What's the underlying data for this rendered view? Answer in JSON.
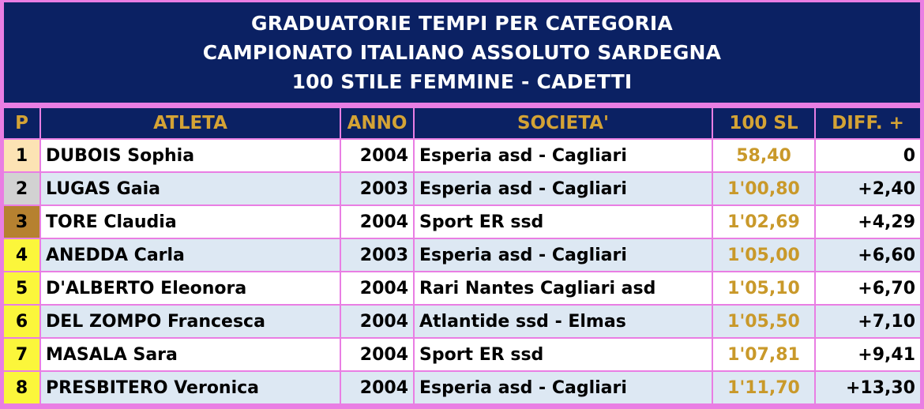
{
  "header": {
    "line1": "GRADUATORIE TEMPI PER CATEGORIA",
    "line2": "CAMPIONATO ITALIANO ASSOLUTO SARDEGNA",
    "line3": "100 STILE FEMMINE - CADETTI"
  },
  "columns": {
    "position": "P",
    "athlete": "ATLETA",
    "year": "ANNO",
    "club": "SOCIETA'",
    "time": "100 SL",
    "diff": "DIFF. +"
  },
  "colors": {
    "header_bg": "#0b2163",
    "header_text": "#ffffff",
    "column_header_text": "#d4a335",
    "time_text": "#c9992a",
    "frame": "#e97ee3",
    "gold": "#fce3b4",
    "silver": "#d2d2d2",
    "bronze": "#b68130",
    "other_position": "#fbf63b"
  },
  "rows": [
    {
      "pos": "1",
      "athlete": "DUBOIS Sophia",
      "year": "2004",
      "club": "Esperia asd - Cagliari",
      "time": "58,40",
      "diff": "0",
      "medal": "gold"
    },
    {
      "pos": "2",
      "athlete": "LUGAS Gaia",
      "year": "2003",
      "club": "Esperia asd - Cagliari",
      "time": "1'00,80",
      "diff": "+2,40",
      "medal": "silver"
    },
    {
      "pos": "3",
      "athlete": "TORE Claudia",
      "year": "2004",
      "club": "Sport ER ssd",
      "time": "1'02,69",
      "diff": "+4,29",
      "medal": "bronze"
    },
    {
      "pos": "4",
      "athlete": "ANEDDA Carla",
      "year": "2003",
      "club": "Esperia asd - Cagliari",
      "time": "1'05,00",
      "diff": "+6,60",
      "medal": "yellow"
    },
    {
      "pos": "5",
      "athlete": "D'ALBERTO Eleonora",
      "year": "2004",
      "club": "Rari Nantes Cagliari asd",
      "time": "1'05,10",
      "diff": "+6,70",
      "medal": "yellow"
    },
    {
      "pos": "6",
      "athlete": "DEL ZOMPO Francesca",
      "year": "2004",
      "club": "Atlantide ssd - Elmas",
      "time": "1'05,50",
      "diff": "+7,10",
      "medal": "yellow"
    },
    {
      "pos": "7",
      "athlete": "MASALA Sara",
      "year": "2004",
      "club": "Sport ER ssd",
      "time": "1'07,81",
      "diff": "+9,41",
      "medal": "yellow"
    },
    {
      "pos": "8",
      "athlete": "PRESBITERO Veronica",
      "year": "2004",
      "club": "Esperia asd - Cagliari",
      "time": "1'11,70",
      "diff": "+13,30",
      "medal": "yellow"
    }
  ]
}
